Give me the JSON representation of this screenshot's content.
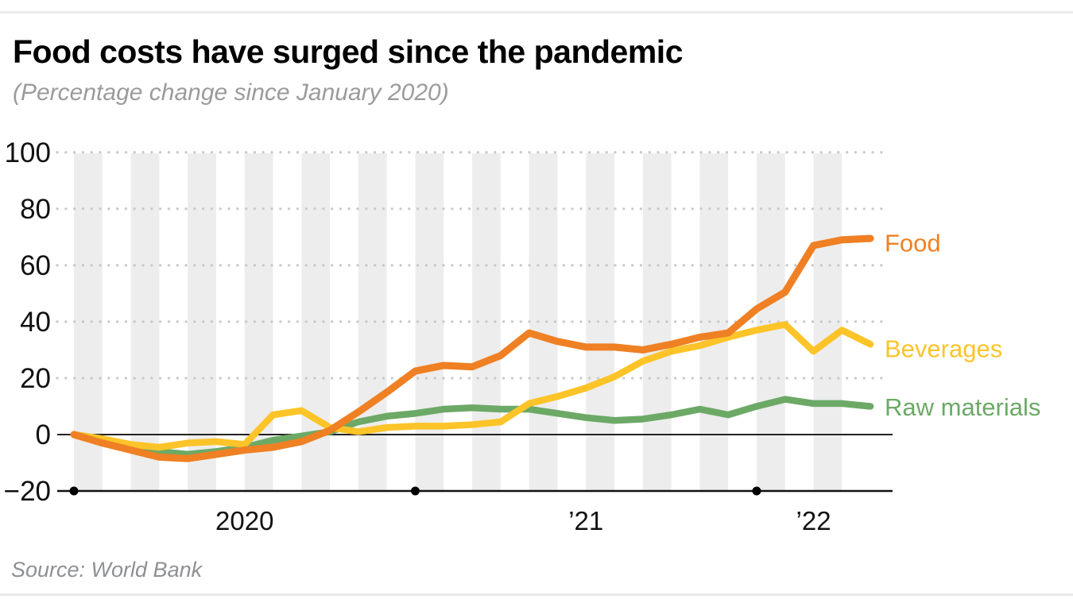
{
  "header": {
    "title": "Food costs have surged since the pandemic",
    "subtitle": "(Percentage change since January 2020)"
  },
  "source": {
    "text": "Source: World Bank"
  },
  "chart_data": {
    "type": "line",
    "title": "Food costs have surged since the pandemic",
    "subtitle": "(Percentage change since January 2020)",
    "x_description": "Monthly points from January 2020 to May 2022 (29 points)",
    "n_points": 29,
    "ylim": [
      -20,
      100
    ],
    "grid": "dotted-horizontal",
    "legend_position": "right-of-line-end",
    "y_ticks": [
      {
        "v": 100,
        "label": "100"
      },
      {
        "v": 80,
        "label": "80"
      },
      {
        "v": 60,
        "label": "60"
      },
      {
        "v": 40,
        "label": "40"
      },
      {
        "v": 20,
        "label": "20"
      },
      {
        "v": 0,
        "label": "0"
      },
      {
        "v": -20,
        "label": "−20"
      }
    ],
    "x_labels": [
      {
        "text": "2020",
        "span": [
          0,
          12
        ]
      },
      {
        "text": "’21",
        "span": [
          12,
          24
        ]
      },
      {
        "text": "’22",
        "span": [
          24,
          28
        ]
      }
    ],
    "x_axis_dots_at_months": [
      0,
      12,
      24
    ],
    "stripes": {
      "color": "#ededed",
      "every_other_month": true,
      "count": 14
    },
    "series": [
      {
        "name": "Food",
        "color": "#ef8023",
        "stroke_width": 9,
        "label_y": 68,
        "values": [
          0,
          -3,
          -5.5,
          -8,
          -8.5,
          -7,
          -5.5,
          -4.5,
          -2.5,
          1.5,
          8,
          15,
          22.5,
          24.5,
          24,
          28,
          36,
          33,
          31,
          31,
          30,
          32,
          34.5,
          36,
          44.5,
          50.5,
          67,
          69,
          69.5
        ]
      },
      {
        "name": "Beverages",
        "color": "#fcc428",
        "stroke_width": 8.5,
        "label_y": 30.5,
        "values": [
          0,
          -1.5,
          -3.5,
          -4.5,
          -3,
          -2.5,
          -3.5,
          7,
          8.5,
          2.5,
          1,
          2.5,
          3,
          3,
          3.5,
          4.5,
          11,
          13.5,
          16.5,
          20.5,
          26,
          29.5,
          31.5,
          34.5,
          37,
          39,
          29.5,
          37,
          32
        ]
      },
      {
        "name": "Raw materials",
        "color": "#6ca966",
        "stroke_width": 8.5,
        "label_y": 9.8,
        "values": [
          0,
          -1.5,
          -4.5,
          -6,
          -7,
          -6,
          -4.5,
          -2,
          -0.5,
          1,
          4.5,
          6.5,
          7.5,
          9,
          9.5,
          9,
          9,
          7.5,
          6,
          5,
          5.5,
          7,
          9,
          7,
          10,
          12.5,
          11,
          11,
          10
        ]
      }
    ],
    "colors": {
      "gridline_dots": "#c9c9c9",
      "zero_line": "#222222",
      "axis_line": "#111111",
      "stripe": "#ededed"
    }
  }
}
